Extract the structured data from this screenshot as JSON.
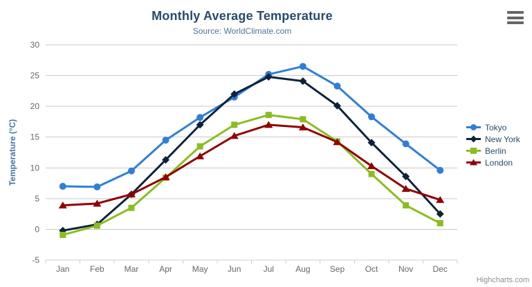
{
  "chart": {
    "credits": "Highcharts.com",
    "context_menu_icon": "hamburger-icon"
  },
  "colors": {
    "background": "#ffffff",
    "title_text": "#274b6d",
    "subtitle_text": "#4d759e",
    "axis_title_text": "#4572a7",
    "tick_label_text": "#666666",
    "grid_line": "#c8c8c8",
    "axis_line": "#c0d0e0",
    "legend_text": "#274b6d",
    "credits_text": "#8f8f8f",
    "menu_icon": "#666666"
  },
  "chart_data": {
    "type": "line",
    "title": "Monthly Average Temperature",
    "subtitle": "Source: WorldClimate.com",
    "categories": [
      "Jan",
      "Feb",
      "Mar",
      "Apr",
      "May",
      "Jun",
      "Jul",
      "Aug",
      "Sep",
      "Oct",
      "Nov",
      "Dec"
    ],
    "xlabel": "",
    "ylabel": "Temperature (°C)",
    "ylim": [
      -5,
      30
    ],
    "ytick_interval": 5,
    "ytick_labels": [
      "-5",
      "0",
      "5",
      "10",
      "15",
      "20",
      "25",
      "30"
    ],
    "grid": true,
    "legend_position": "right",
    "series": [
      {
        "name": "Tokyo",
        "color": "#2f7ed8",
        "marker": "circle",
        "values": [
          7.0,
          6.9,
          9.5,
          14.5,
          18.2,
          21.5,
          25.2,
          26.5,
          23.3,
          18.3,
          13.9,
          9.6
        ]
      },
      {
        "name": "New York",
        "color": "#0d233a",
        "marker": "diamond",
        "values": [
          -0.2,
          0.8,
          5.7,
          11.3,
          17.0,
          22.0,
          24.8,
          24.1,
          20.1,
          14.1,
          8.6,
          2.5
        ]
      },
      {
        "name": "Berlin",
        "color": "#8bbc21",
        "marker": "square",
        "values": [
          -0.9,
          0.6,
          3.5,
          8.4,
          13.5,
          17.0,
          18.6,
          17.9,
          14.3,
          9.0,
          3.9,
          1.0
        ]
      },
      {
        "name": "London",
        "color": "#910000",
        "marker": "triangle",
        "values": [
          3.9,
          4.2,
          5.7,
          8.5,
          11.9,
          15.2,
          17.0,
          16.6,
          14.2,
          10.3,
          6.6,
          4.8
        ]
      }
    ]
  }
}
